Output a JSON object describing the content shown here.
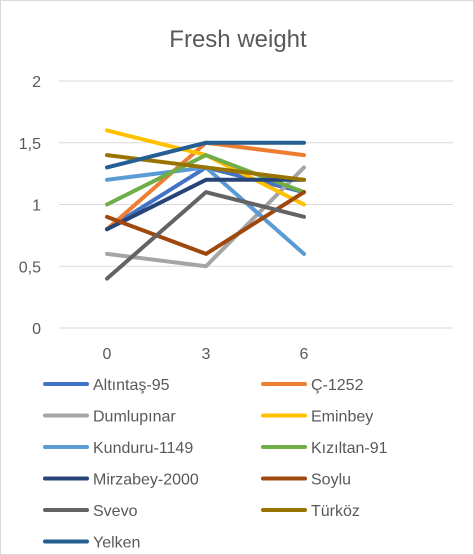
{
  "chart_data": {
    "type": "line",
    "title": "Fresh weight",
    "xlabel": "",
    "ylabel": "",
    "categories": [
      "0",
      "3",
      "6"
    ],
    "ylim": [
      0,
      2
    ],
    "yticks": [
      "0",
      "0,5",
      "1",
      "1,5",
      "2"
    ],
    "grid": true,
    "legend_position": "bottom",
    "series": [
      {
        "name": "Altıntaş-95",
        "color": "#4472C4",
        "values": [
          0.8,
          1.3,
          1.1
        ]
      },
      {
        "name": "Ç-1252",
        "color": "#ED7D31",
        "values": [
          0.8,
          1.5,
          1.4
        ]
      },
      {
        "name": "Dumlupınar",
        "color": "#A5A5A5",
        "values": [
          0.6,
          0.5,
          1.3
        ]
      },
      {
        "name": "Eminbey",
        "color": "#FFC000",
        "values": [
          1.6,
          1.4,
          1.0
        ]
      },
      {
        "name": "Kunduru-1149",
        "color": "#5B9BD5",
        "values": [
          1.2,
          1.3,
          0.6
        ]
      },
      {
        "name": "Kızıltan-91",
        "color": "#70AD47",
        "values": [
          1.0,
          1.4,
          1.1
        ]
      },
      {
        "name": "Mirzabey-2000",
        "color": "#264478",
        "values": [
          0.8,
          1.2,
          1.2
        ]
      },
      {
        "name": "Soylu",
        "color": "#9E480E",
        "values": [
          0.9,
          0.6,
          1.1
        ]
      },
      {
        "name": "Svevo",
        "color": "#636363",
        "values": [
          0.4,
          1.1,
          0.9
        ]
      },
      {
        "name": "Türköz",
        "color": "#997300",
        "values": [
          1.4,
          1.3,
          1.2
        ]
      },
      {
        "name": "Yelken",
        "color": "#255E91",
        "values": [
          1.3,
          1.5,
          1.5
        ]
      }
    ]
  }
}
